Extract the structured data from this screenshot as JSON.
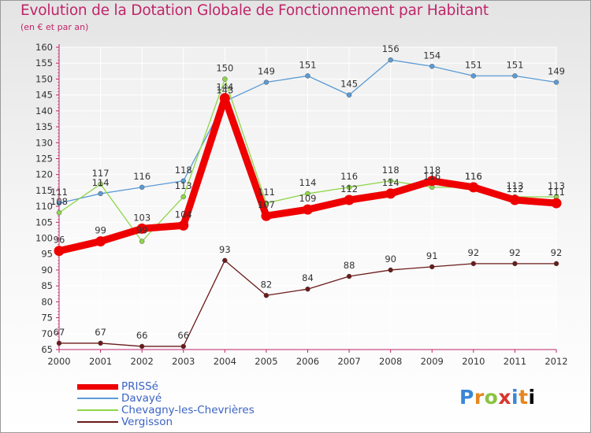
{
  "chart_data": {
    "type": "line",
    "title": "Evolution de la Dotation Globale de Fonctionnement par Habitant",
    "subtitle": "(en € et par an)",
    "xlabel": "",
    "ylabel": "",
    "ylim": [
      65,
      160
    ],
    "ytick_step": 5,
    "grid": true,
    "legend_position": "bottom-left",
    "x": [
      "2000",
      "2001",
      "2002",
      "2003",
      "2004",
      "2005",
      "2006",
      "2007",
      "2008",
      "2009",
      "2010",
      "2011",
      "2012"
    ],
    "series": [
      {
        "name": "PRISSé",
        "color": "#ee0000",
        "emphasis": true,
        "values": [
          96,
          99,
          103,
          104,
          144,
          107,
          109,
          112,
          114,
          118,
          116,
          112,
          111
        ],
        "labels": [
          "96",
          "99",
          "103",
          "104",
          "144",
          "107",
          "109",
          "112",
          "114",
          "118",
          "116",
          "112",
          "111"
        ]
      },
      {
        "name": "Davayé",
        "color": "#5b9bd5",
        "emphasis": false,
        "values": [
          111,
          114,
          116,
          118,
          143,
          149,
          151,
          145,
          156,
          154,
          151,
          151,
          149
        ],
        "labels": [
          "111",
          "114",
          "116",
          "118",
          "143",
          "149",
          "151",
          "145",
          "156",
          "154",
          "151",
          "151",
          "149"
        ]
      },
      {
        "name": "Chevagny-les-Chevrières",
        "color": "#8ed64a",
        "emphasis": false,
        "values": [
          108,
          117,
          99,
          113,
          150,
          111,
          114,
          116,
          118,
          116,
          116,
          113,
          113
        ],
        "labels": [
          "108",
          "117",
          "99",
          "113",
          "150",
          "111",
          "114",
          "116",
          "118",
          "116",
          "116",
          "113",
          "113"
        ]
      },
      {
        "name": "Vergisson",
        "color": "#6b1a1a",
        "emphasis": false,
        "values": [
          67,
          67,
          66,
          66,
          93,
          82,
          84,
          88,
          90,
          91,
          92,
          92,
          92
        ],
        "labels": [
          "67",
          "67",
          "66",
          "66",
          "93",
          "82",
          "84",
          "88",
          "90",
          "91",
          "92",
          "92",
          "92"
        ]
      }
    ]
  },
  "logo": {
    "letters": [
      "P",
      "r",
      "o",
      "x",
      "i",
      "t",
      "i"
    ]
  }
}
